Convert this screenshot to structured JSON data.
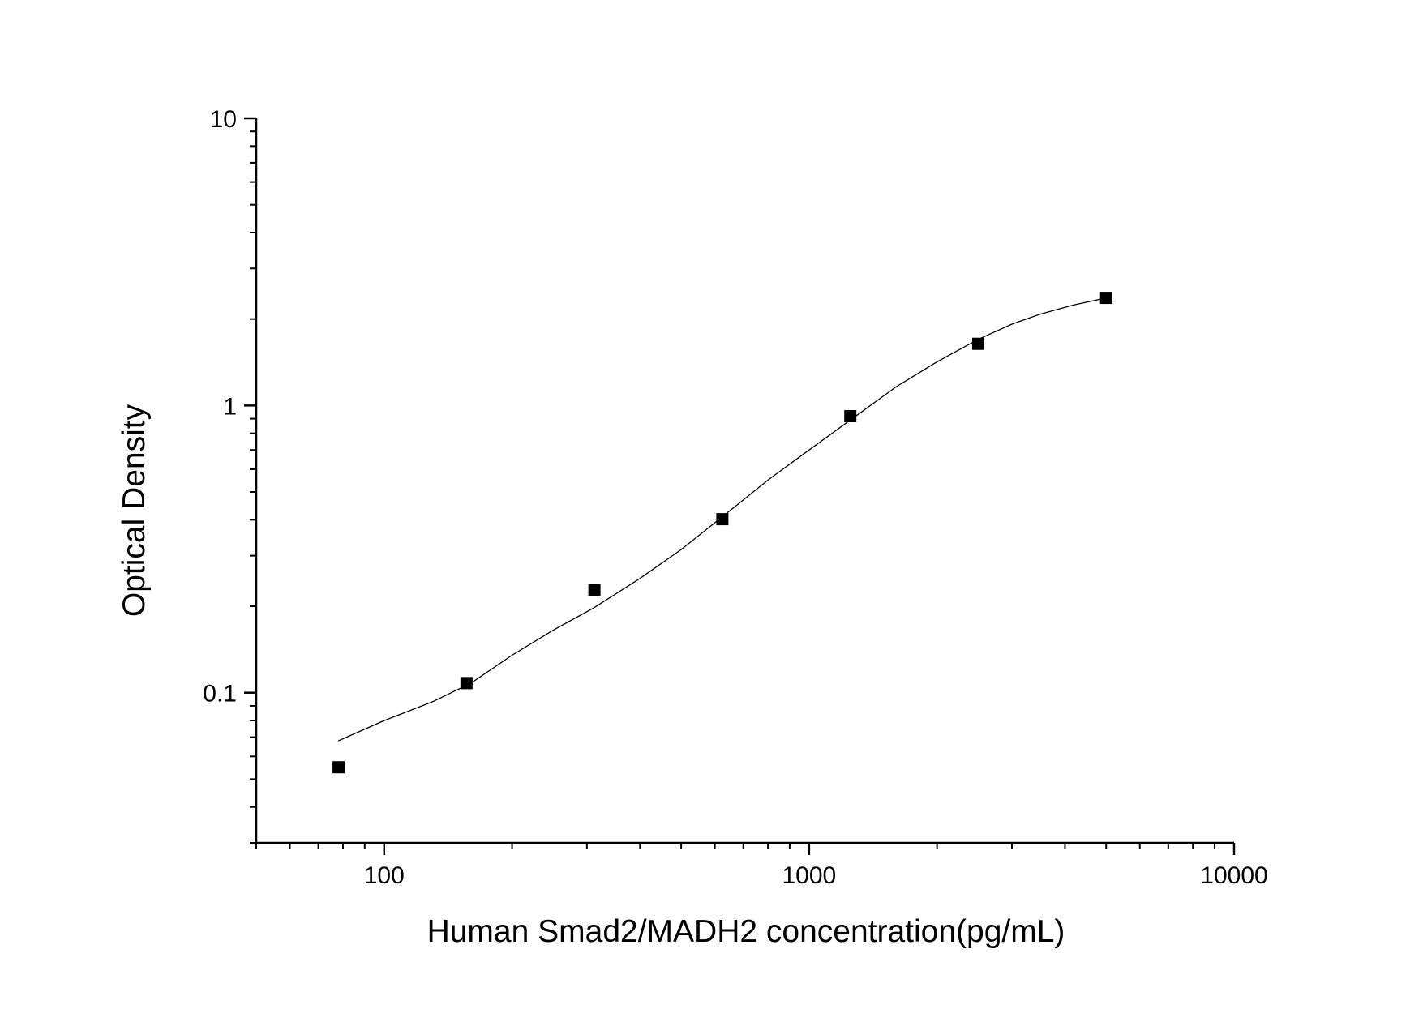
{
  "chart_data": {
    "type": "scatter",
    "title": "",
    "xlabel": "Human Smad2/MADH2 concentration(pg/mL)",
    "ylabel": "Optical Density",
    "x_scale": "log",
    "y_scale": "log",
    "xlim": [
      50,
      10000
    ],
    "ylim": [
      0.03,
      10
    ],
    "x_ticks": [
      {
        "value": 100,
        "label": "100"
      },
      {
        "value": 1000,
        "label": "1000"
      },
      {
        "value": 10000,
        "label": "10000"
      }
    ],
    "y_ticks": [
      {
        "value": 0.1,
        "label": "0.1"
      },
      {
        "value": 1,
        "label": "1"
      },
      {
        "value": 10,
        "label": "10"
      }
    ],
    "grid": false,
    "legend": "none",
    "series": [
      {
        "kind": "points",
        "marker": "square",
        "color": "#000000",
        "x": [
          78.125,
          156.25,
          312.5,
          625,
          1250,
          2500,
          5000
        ],
        "y": [
          0.055,
          0.108,
          0.228,
          0.402,
          0.918,
          1.64,
          2.37
        ]
      },
      {
        "kind": "fit-curve",
        "color": "#000000",
        "x": [
          78,
          100,
          130,
          160,
          200,
          250,
          312.5,
          400,
          500,
          625,
          800,
          1000,
          1250,
          1600,
          2000,
          2500,
          3000,
          3500,
          4200,
          5000
        ],
        "y": [
          0.068,
          0.08,
          0.093,
          0.108,
          0.135,
          0.165,
          0.198,
          0.25,
          0.315,
          0.41,
          0.55,
          0.7,
          0.89,
          1.16,
          1.42,
          1.7,
          1.92,
          2.08,
          2.24,
          2.37
        ]
      }
    ]
  }
}
